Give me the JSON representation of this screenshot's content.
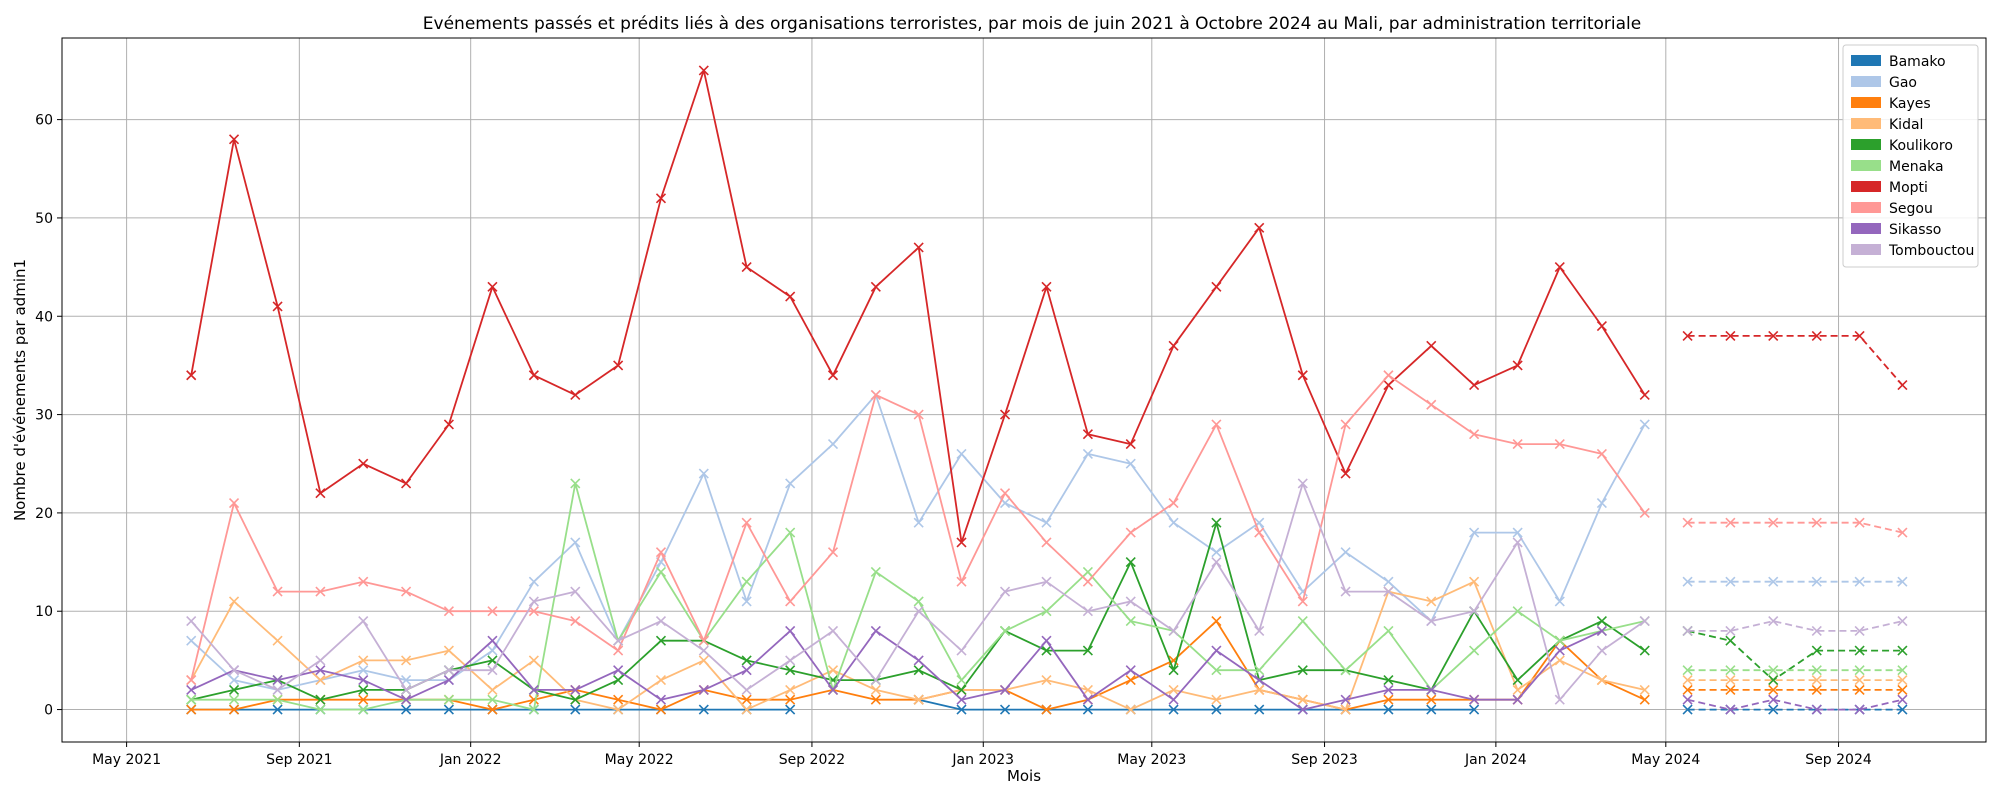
{
  "chart_data": {
    "type": "line",
    "title": "Evénements passés et prédits liés à des organisations terroristes, par mois de juin 2021 à Octobre 2024 au Mali, par administration territoriale",
    "xlabel": "Mois",
    "ylabel": "Nombre d'événements par admin1",
    "xlim": [
      "2021-03-16",
      "2024-12-15"
    ],
    "ylim": [
      -3.3,
      68.3
    ],
    "grid": true,
    "legend_position": "top-right",
    "x_ticks": [
      {
        "date": "2021-05-01",
        "label": "May 2021"
      },
      {
        "date": "2021-09-01",
        "label": "Sep 2021"
      },
      {
        "date": "2022-01-01",
        "label": "Jan 2022"
      },
      {
        "date": "2022-05-01",
        "label": "May 2022"
      },
      {
        "date": "2022-09-01",
        "label": "Sep 2022"
      },
      {
        "date": "2023-01-01",
        "label": "Jan 2023"
      },
      {
        "date": "2023-05-01",
        "label": "May 2023"
      },
      {
        "date": "2023-09-01",
        "label": "Sep 2023"
      },
      {
        "date": "2024-01-01",
        "label": "Jan 2024"
      },
      {
        "date": "2024-05-01",
        "label": "May 2024"
      },
      {
        "date": "2024-09-01",
        "label": "Sep 2024"
      }
    ],
    "y_ticks": [
      0,
      10,
      20,
      30,
      40,
      50,
      60
    ],
    "past_months": [
      "2021-06",
      "2021-07",
      "2021-08",
      "2021-09",
      "2021-10",
      "2021-11",
      "2021-12",
      "2022-01",
      "2022-02",
      "2022-03",
      "2022-04",
      "2022-05",
      "2022-06",
      "2022-07",
      "2022-08",
      "2022-09",
      "2022-10",
      "2022-11",
      "2022-12",
      "2023-01",
      "2023-02",
      "2023-03",
      "2023-04",
      "2023-05",
      "2023-06",
      "2023-07",
      "2023-08",
      "2023-09",
      "2023-10",
      "2023-11",
      "2023-12",
      "2024-01",
      "2024-02",
      "2024-03",
      "2024-04"
    ],
    "forecast_months": [
      "2024-05",
      "2024-06",
      "2024-07",
      "2024-08",
      "2024-09",
      "2024-10"
    ],
    "series": [
      {
        "name": "Bamako",
        "color": "#1f77b4",
        "past": [
          0,
          0,
          0,
          0,
          0,
          0,
          0,
          0,
          0,
          0,
          0,
          0,
          0,
          0,
          0,
          null,
          null,
          1,
          0,
          0,
          0,
          0,
          0,
          0,
          0,
          0,
          0,
          0,
          0,
          0,
          0,
          null,
          null,
          null,
          null
        ],
        "forecast": [
          0,
          0,
          0,
          0,
          0,
          0
        ]
      },
      {
        "name": "Gao",
        "color": "#aec7e8",
        "past": [
          7,
          3,
          2,
          3,
          4,
          3,
          3,
          6,
          13,
          17,
          7,
          15,
          24,
          11,
          23,
          27,
          32,
          19,
          26,
          21,
          19,
          26,
          25,
          19,
          16,
          19,
          12,
          16,
          13,
          9,
          18,
          18,
          11,
          21,
          29
        ],
        "forecast": [
          13,
          13,
          13,
          13,
          13,
          13
        ]
      },
      {
        "name": "Kayes",
        "color": "#ff7f0e",
        "past": [
          0,
          0,
          1,
          1,
          1,
          1,
          1,
          0,
          1,
          2,
          1,
          0,
          2,
          1,
          1,
          2,
          1,
          1,
          2,
          2,
          0,
          1,
          3,
          5,
          9,
          2,
          1,
          0,
          1,
          1,
          1,
          1,
          7,
          3,
          1
        ],
        "forecast": [
          2,
          2,
          2,
          2,
          2,
          2
        ]
      },
      {
        "name": "Kidal",
        "color": "#ffbb78",
        "past": [
          3,
          11,
          7,
          3,
          5,
          5,
          6,
          2,
          5,
          1,
          0,
          3,
          5,
          0,
          2,
          4,
          2,
          1,
          2,
          2,
          3,
          2,
          0,
          2,
          1,
          2,
          1,
          0,
          12,
          11,
          13,
          2,
          5,
          3,
          2
        ],
        "forecast": [
          3,
          3,
          3,
          3,
          3,
          3
        ]
      },
      {
        "name": "Koulikoro",
        "color": "#2ca02c",
        "past": [
          1,
          2,
          3,
          1,
          2,
          2,
          4,
          5,
          2,
          1,
          3,
          7,
          7,
          5,
          4,
          3,
          3,
          4,
          2,
          8,
          6,
          6,
          15,
          4,
          19,
          3,
          4,
          4,
          3,
          2,
          10,
          3,
          7,
          9,
          6
        ],
        "forecast": [
          8,
          7,
          3,
          6,
          6,
          6
        ]
      },
      {
        "name": "Menaka",
        "color": "#98df8a",
        "past": [
          1,
          1,
          1,
          0,
          0,
          1,
          1,
          1,
          0,
          23,
          7,
          14,
          7,
          13,
          18,
          2,
          14,
          11,
          3,
          8,
          10,
          14,
          9,
          8,
          4,
          4,
          9,
          4,
          8,
          2,
          6,
          10,
          7,
          8,
          9
        ],
        "forecast": [
          4,
          4,
          4,
          4,
          4,
          4
        ]
      },
      {
        "name": "Mopti",
        "color": "#d62728",
        "past": [
          34,
          58,
          41,
          22,
          25,
          23,
          29,
          43,
          34,
          32,
          35,
          52,
          65,
          45,
          42,
          34,
          43,
          47,
          17,
          30,
          43,
          28,
          27,
          37,
          43,
          49,
          34,
          24,
          33,
          37,
          33,
          35,
          45,
          39,
          32
        ],
        "forecast": [
          38,
          38,
          38,
          38,
          38,
          33
        ]
      },
      {
        "name": "Segou",
        "color": "#ff9896",
        "past": [
          3,
          21,
          12,
          12,
          13,
          12,
          10,
          10,
          10,
          9,
          6,
          16,
          7,
          19,
          11,
          16,
          32,
          30,
          13,
          22,
          17,
          13,
          18,
          21,
          29,
          18,
          11,
          29,
          34,
          31,
          28,
          27,
          27,
          26,
          20
        ],
        "forecast": [
          19,
          19,
          19,
          19,
          19,
          18
        ]
      },
      {
        "name": "Sikasso",
        "color": "#9467bd",
        "past": [
          2,
          4,
          3,
          4,
          3,
          1,
          3,
          7,
          2,
          2,
          4,
          1,
          2,
          4,
          8,
          2,
          8,
          5,
          1,
          2,
          7,
          1,
          4,
          1,
          6,
          3,
          0,
          1,
          2,
          2,
          1,
          1,
          6,
          8,
          null
        ],
        "forecast": [
          1,
          0,
          1,
          0,
          0,
          1
        ]
      },
      {
        "name": "Tombouctou",
        "color": "#c5b0d5",
        "past": [
          9,
          4,
          2,
          5,
          9,
          2,
          4,
          4,
          11,
          12,
          7,
          9,
          6,
          2,
          5,
          8,
          3,
          10,
          6,
          12,
          13,
          10,
          11,
          8,
          15,
          8,
          23,
          12,
          12,
          9,
          10,
          17,
          1,
          6,
          9
        ],
        "forecast": [
          8,
          8,
          9,
          8,
          8,
          9
        ]
      }
    ]
  }
}
